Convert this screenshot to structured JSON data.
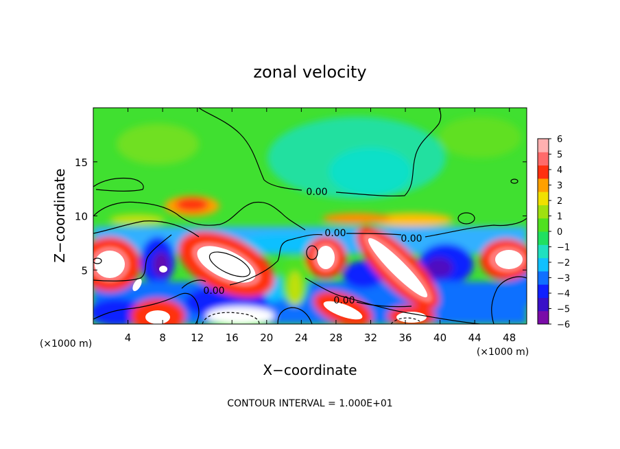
{
  "chart_data": {
    "type": "heatmap",
    "title": "zonal velocity",
    "xlabel": "X−coordinate",
    "ylabel": "Z−coordinate",
    "x_unit_left": "(×1000 m)",
    "x_unit_right": "(×1000 m)",
    "xlim": [
      0,
      50
    ],
    "ylim": [
      0,
      20
    ],
    "x_ticks": [
      4,
      8,
      12,
      16,
      20,
      24,
      28,
      32,
      36,
      40,
      44,
      48
    ],
    "y_ticks": [
      5,
      10,
      15
    ],
    "colorbar": {
      "min": -6,
      "max": 6,
      "ticks": [
        "6",
        "5",
        "4",
        "3",
        "2",
        "1",
        "0",
        "−1",
        "−2",
        "−3",
        "−4",
        "−5",
        "−6"
      ],
      "colors": [
        "#7a0ca8",
        "#3a10c8",
        "#1020ff",
        "#1070ff",
        "#10c0ff",
        "#20e0c0",
        "#20e060",
        "#50e020",
        "#a0e010",
        "#f0e000",
        "#ffa000",
        "#ff3010",
        "#ff6a6a",
        "#ffb0b0"
      ]
    },
    "contour_label": "0.00",
    "contour_labels_count": 5,
    "footer": "CONTOUR INTERVAL = 1.000E+01"
  }
}
